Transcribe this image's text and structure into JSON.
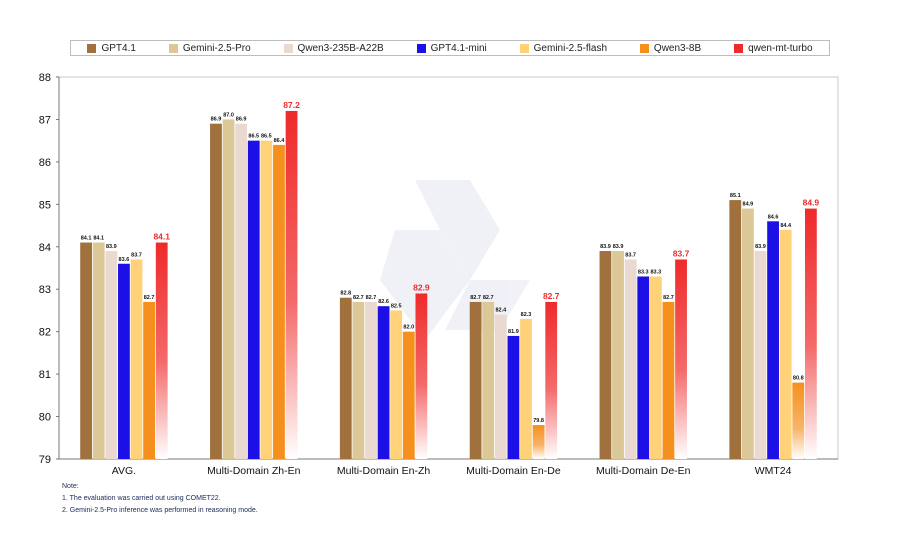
{
  "chart_data": {
    "type": "bar",
    "categories": [
      "AVG.",
      "Multi-Domain Zh-En",
      "Multi-Domain En-Zh",
      "Multi-Domain En-De",
      "Multi-Domain De-En",
      "WMT24"
    ],
    "series": [
      {
        "name": "GPT4.1",
        "color": "#a0703d",
        "values": [
          84.1,
          86.9,
          82.8,
          82.7,
          83.9,
          85.1
        ]
      },
      {
        "name": "Gemini-2.5-Pro",
        "color": "#dcc896",
        "values": [
          84.1,
          87.0,
          82.7,
          82.7,
          83.9,
          84.9
        ]
      },
      {
        "name": "Qwen3-235B-A22B",
        "color": "#ead9d0",
        "values": [
          83.9,
          86.9,
          82.7,
          82.4,
          83.7,
          83.9
        ]
      },
      {
        "name": "GPT4.1-mini",
        "color": "#1c10e6",
        "values": [
          83.6,
          86.5,
          82.6,
          81.9,
          83.3,
          84.6
        ]
      },
      {
        "name": "Gemini-2.5-flash",
        "color": "#ffd27a",
        "values": [
          83.7,
          86.5,
          82.5,
          82.3,
          83.3,
          84.4
        ]
      },
      {
        "name": "Qwen3-8B",
        "color": "#f5901e",
        "values": [
          82.7,
          86.4,
          82.0,
          79.8,
          82.7,
          80.8
        ]
      },
      {
        "name": "qwen-mt-turbo",
        "color": "#ef2a2a",
        "values": [
          84.1,
          87.2,
          82.9,
          82.7,
          83.7,
          84.9
        ],
        "highlight": true
      }
    ],
    "ylim": [
      79,
      88
    ],
    "yticks": [
      79,
      80,
      81,
      82,
      83,
      84,
      85,
      86,
      87,
      88
    ],
    "grid": false,
    "legend_position": "top",
    "highlight_color": "#ef2a2a"
  },
  "notes": {
    "title": "Note:",
    "lines": [
      "1. The evaluation was carried out using COMET22.",
      "2. Gemini-2.5-Pro inference was performed in reasoning mode."
    ]
  }
}
